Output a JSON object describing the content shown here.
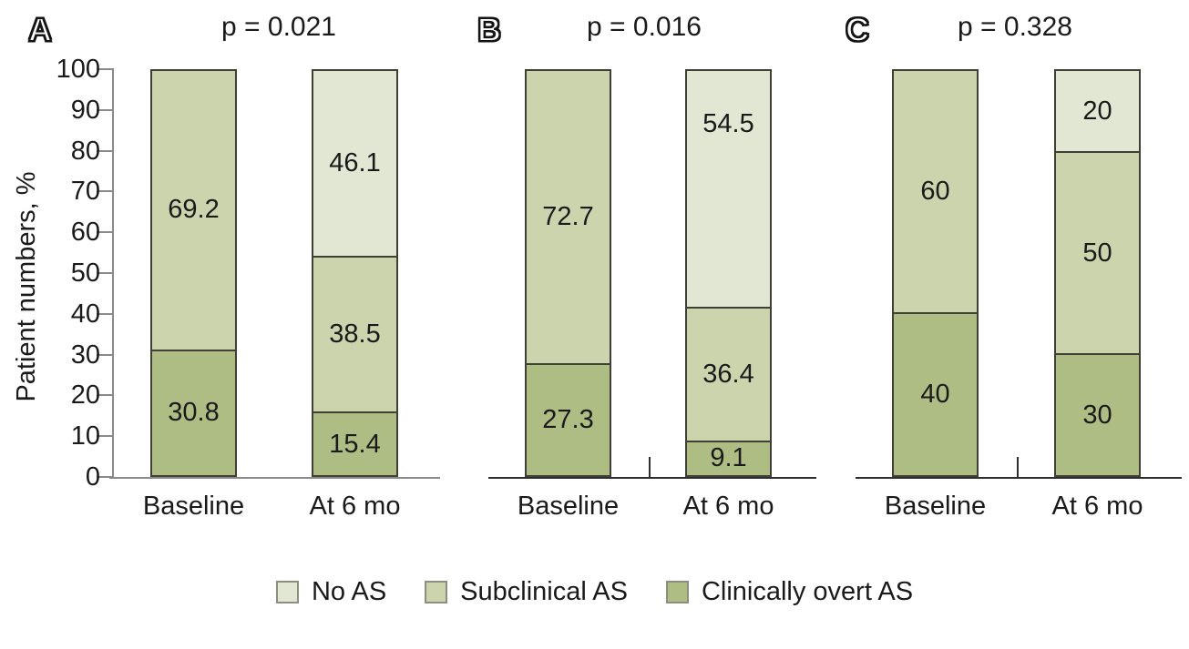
{
  "figure": {
    "ylabel": "Patient numbers, %",
    "yticks": [
      "0",
      "10",
      "20",
      "30",
      "40",
      "50",
      "60",
      "70",
      "80",
      "90",
      "100"
    ],
    "legend": {
      "items": [
        {
          "label": "No AS",
          "color": "#e2e7d4"
        },
        {
          "label": "Subclinical AS",
          "color": "#ccd4ae"
        },
        {
          "label": "Clinically overt AS",
          "color": "#aebd84"
        }
      ]
    }
  },
  "chart_data": [
    {
      "type": "bar",
      "stacked": true,
      "panel_letter": "A",
      "p_label": "p = 0.021",
      "ylim": [
        0,
        100
      ],
      "categories": [
        "Baseline",
        "At 6 mo"
      ],
      "series_order_bottom_to_top": [
        "Clinically overt AS",
        "Subclinical AS",
        "No AS"
      ],
      "bars": [
        {
          "category": "Baseline",
          "segments": [
            {
              "series": "Clinically overt AS",
              "value": 30.8,
              "label": "30.8"
            },
            {
              "series": "Subclinical AS",
              "value": 69.2,
              "label": "69.2"
            }
          ]
        },
        {
          "category": "At 6 mo",
          "segments": [
            {
              "series": "Clinically overt AS",
              "value": 15.4,
              "label": "15.4"
            },
            {
              "series": "Subclinical AS",
              "value": 38.5,
              "label": "38.5"
            },
            {
              "series": "No AS",
              "value": 46.1,
              "label": "46.1"
            }
          ]
        }
      ]
    },
    {
      "type": "bar",
      "stacked": true,
      "panel_letter": "B",
      "p_label": "p = 0.016",
      "ylim": [
        0,
        100
      ],
      "categories": [
        "Baseline",
        "At 6 mo"
      ],
      "series_order_bottom_to_top": [
        "Clinically overt AS",
        "Subclinical AS",
        "No AS"
      ],
      "bars": [
        {
          "category": "Baseline",
          "segments": [
            {
              "series": "Clinically overt AS",
              "value": 27.3,
              "label": "27.3"
            },
            {
              "series": "Subclinical AS",
              "value": 72.7,
              "label": "72.7"
            }
          ]
        },
        {
          "category": "At 6 mo",
          "segments": [
            {
              "series": "Clinically overt AS",
              "value": 9.1,
              "label": "9.1"
            },
            {
              "series": "Subclinical AS",
              "value": 36.4,
              "label": "36.4"
            },
            {
              "series": "No AS",
              "value": 54.5,
              "label": "54.5",
              "label_align": "top"
            }
          ]
        }
      ]
    },
    {
      "type": "bar",
      "stacked": true,
      "panel_letter": "C",
      "p_label": "p = 0.328",
      "ylim": [
        0,
        100
      ],
      "categories": [
        "Baseline",
        "At 6 mo"
      ],
      "series_order_bottom_to_top": [
        "Clinically overt AS",
        "Subclinical AS",
        "No AS"
      ],
      "bars": [
        {
          "category": "Baseline",
          "segments": [
            {
              "series": "Clinically overt AS",
              "value": 40,
              "label": "40"
            },
            {
              "series": "Subclinical AS",
              "value": 60,
              "label": "60"
            }
          ]
        },
        {
          "category": "At 6 mo",
          "segments": [
            {
              "series": "Clinically overt AS",
              "value": 30,
              "label": "30"
            },
            {
              "series": "Subclinical AS",
              "value": 50,
              "label": "50"
            },
            {
              "series": "No AS",
              "value": 20,
              "label": "20"
            }
          ]
        }
      ]
    }
  ]
}
